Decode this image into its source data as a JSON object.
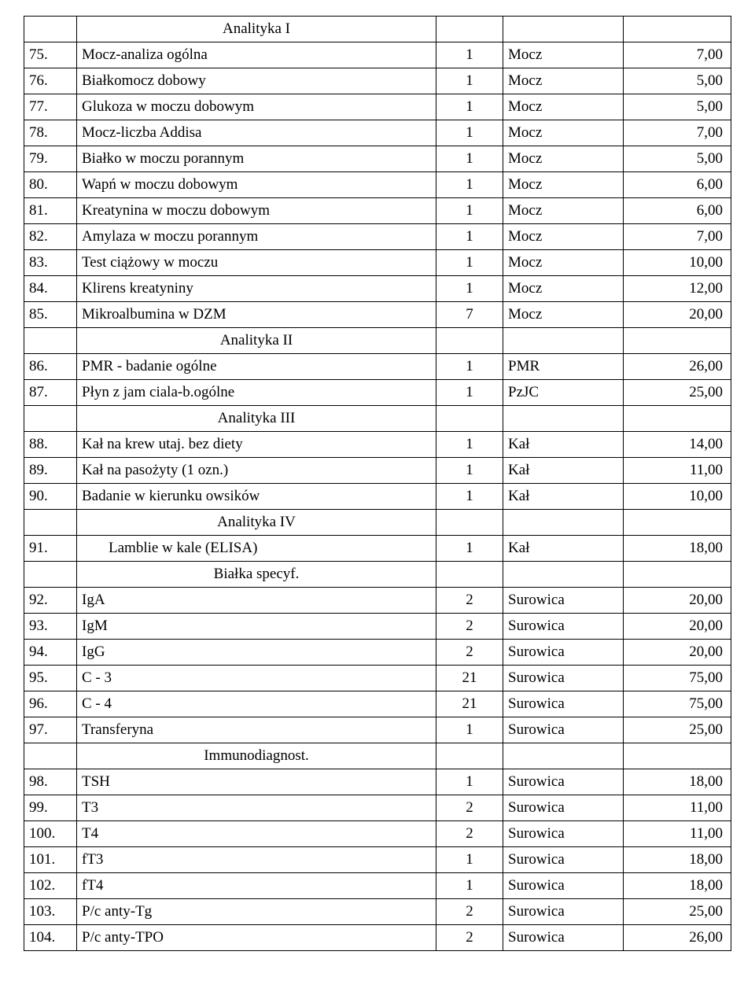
{
  "table": {
    "columns": {
      "num_width": 54,
      "qty_width": 72,
      "material_width": 140,
      "price_width": 120
    },
    "font": {
      "family": "Times New Roman",
      "size_pt": 14
    },
    "colors": {
      "border": "#000000",
      "text": "#000000",
      "background": "#ffffff"
    },
    "sections": [
      {
        "title": "Analityka I",
        "align": "center",
        "rows": [
          {
            "num": "75.",
            "name": "Mocz-analiza ogólna",
            "qty": "1",
            "material": "Mocz",
            "price": "7,00"
          },
          {
            "num": "76.",
            "name": "Białkomocz dobowy",
            "qty": "1",
            "material": "Mocz",
            "price": "5,00"
          },
          {
            "num": "77.",
            "name": "Glukoza w moczu dobowym",
            "qty": "1",
            "material": "Mocz",
            "price": "5,00"
          },
          {
            "num": "78.",
            "name": "Mocz-liczba Addisa",
            "qty": "1",
            "material": "Mocz",
            "price": "7,00"
          },
          {
            "num": "79.",
            "name": "Białko w moczu porannym",
            "qty": "1",
            "material": "Mocz",
            "price": "5,00"
          },
          {
            "num": "80.",
            "name": "Wapń w moczu dobowym",
            "qty": "1",
            "material": "Mocz",
            "price": "6,00"
          },
          {
            "num": "81.",
            "name": "Kreatynina w moczu dobowym",
            "qty": "1",
            "material": "Mocz",
            "price": "6,00"
          },
          {
            "num": "82.",
            "name": "Amylaza w moczu porannym",
            "qty": "1",
            "material": "Mocz",
            "price": "7,00"
          },
          {
            "num": "83.",
            "name": "Test ciążowy w moczu",
            "qty": "1",
            "material": "Mocz",
            "price": "10,00"
          },
          {
            "num": "84.",
            "name": "Klirens kreatyniny",
            "qty": "1",
            "material": "Mocz",
            "price": "12,00"
          },
          {
            "num": "85.",
            "name": "Mikroalbumina w DZM",
            "qty": "7",
            "material": "Mocz",
            "price": "20,00"
          }
        ]
      },
      {
        "title": "Analityka II",
        "align": "center",
        "rows": [
          {
            "num": "86.",
            "name": "PMR - badanie ogólne",
            "qty": "1",
            "material": "PMR",
            "price": "26,00"
          },
          {
            "num": "87.",
            "name": "Płyn z jam ciala-b.ogólne",
            "qty": "1",
            "material": "PzJC",
            "price": "25,00"
          }
        ]
      },
      {
        "title": "Analityka III",
        "align": "center",
        "rows": [
          {
            "num": "88.",
            "name": "Kał na krew utaj. bez diety",
            "qty": "1",
            "material": "Kał",
            "price": "14,00"
          },
          {
            "num": "89.",
            "name": "Kał na pasożyty (1 ozn.)",
            "qty": "1",
            "material": "Kał",
            "price": "11,00"
          },
          {
            "num": "90.",
            "name": "Badanie w kierunku owsików",
            "qty": "1",
            "material": "Kał",
            "price": "10,00"
          }
        ]
      },
      {
        "title": "Analityka IV",
        "align": "center",
        "rows": [
          {
            "num": "91.",
            "name": "Lamblie w kale (ELISA)",
            "qty": "1",
            "material": "Kał",
            "price": "18,00",
            "indent": true
          }
        ]
      },
      {
        "title": "Białka specyf.",
        "align": "center",
        "rows": [
          {
            "num": "92.",
            "name": "IgA",
            "qty": "2",
            "material": "Surowica",
            "price": "20,00"
          },
          {
            "num": "93.",
            "name": "IgM",
            "qty": "2",
            "material": "Surowica",
            "price": "20,00"
          },
          {
            "num": "94.",
            "name": "IgG",
            "qty": "2",
            "material": "Surowica",
            "price": "20,00"
          },
          {
            "num": "95.",
            "name": "C - 3",
            "qty": "21",
            "material": "Surowica",
            "price": "75,00"
          },
          {
            "num": "96.",
            "name": "C - 4",
            "qty": "21",
            "material": "Surowica",
            "price": "75,00"
          },
          {
            "num": "97.",
            "name": "Transferyna",
            "qty": "1",
            "material": "Surowica",
            "price": "25,00"
          }
        ]
      },
      {
        "title": "Immunodiagnost.",
        "align": "center",
        "rows": [
          {
            "num": "98.",
            "name": "TSH",
            "qty": "1",
            "material": "Surowica",
            "price": "18,00"
          },
          {
            "num": "99.",
            "name": "T3",
            "qty": "2",
            "material": "Surowica",
            "price": "11,00"
          },
          {
            "num": "100.",
            "name": "T4",
            "qty": "2",
            "material": "Surowica",
            "price": "11,00"
          },
          {
            "num": "101.",
            "name": "fT3",
            "qty": "1",
            "material": "Surowica",
            "price": "18,00"
          },
          {
            "num": "102.",
            "name": "fT4",
            "qty": "1",
            "material": "Surowica",
            "price": "18,00"
          },
          {
            "num": "103.",
            "name": "P/c anty-Tg",
            "qty": "2",
            "material": "Surowica",
            "price": "25,00"
          },
          {
            "num": "104.",
            "name": "P/c anty-TPO",
            "qty": "2",
            "material": "Surowica",
            "price": "26,00"
          }
        ]
      }
    ]
  }
}
